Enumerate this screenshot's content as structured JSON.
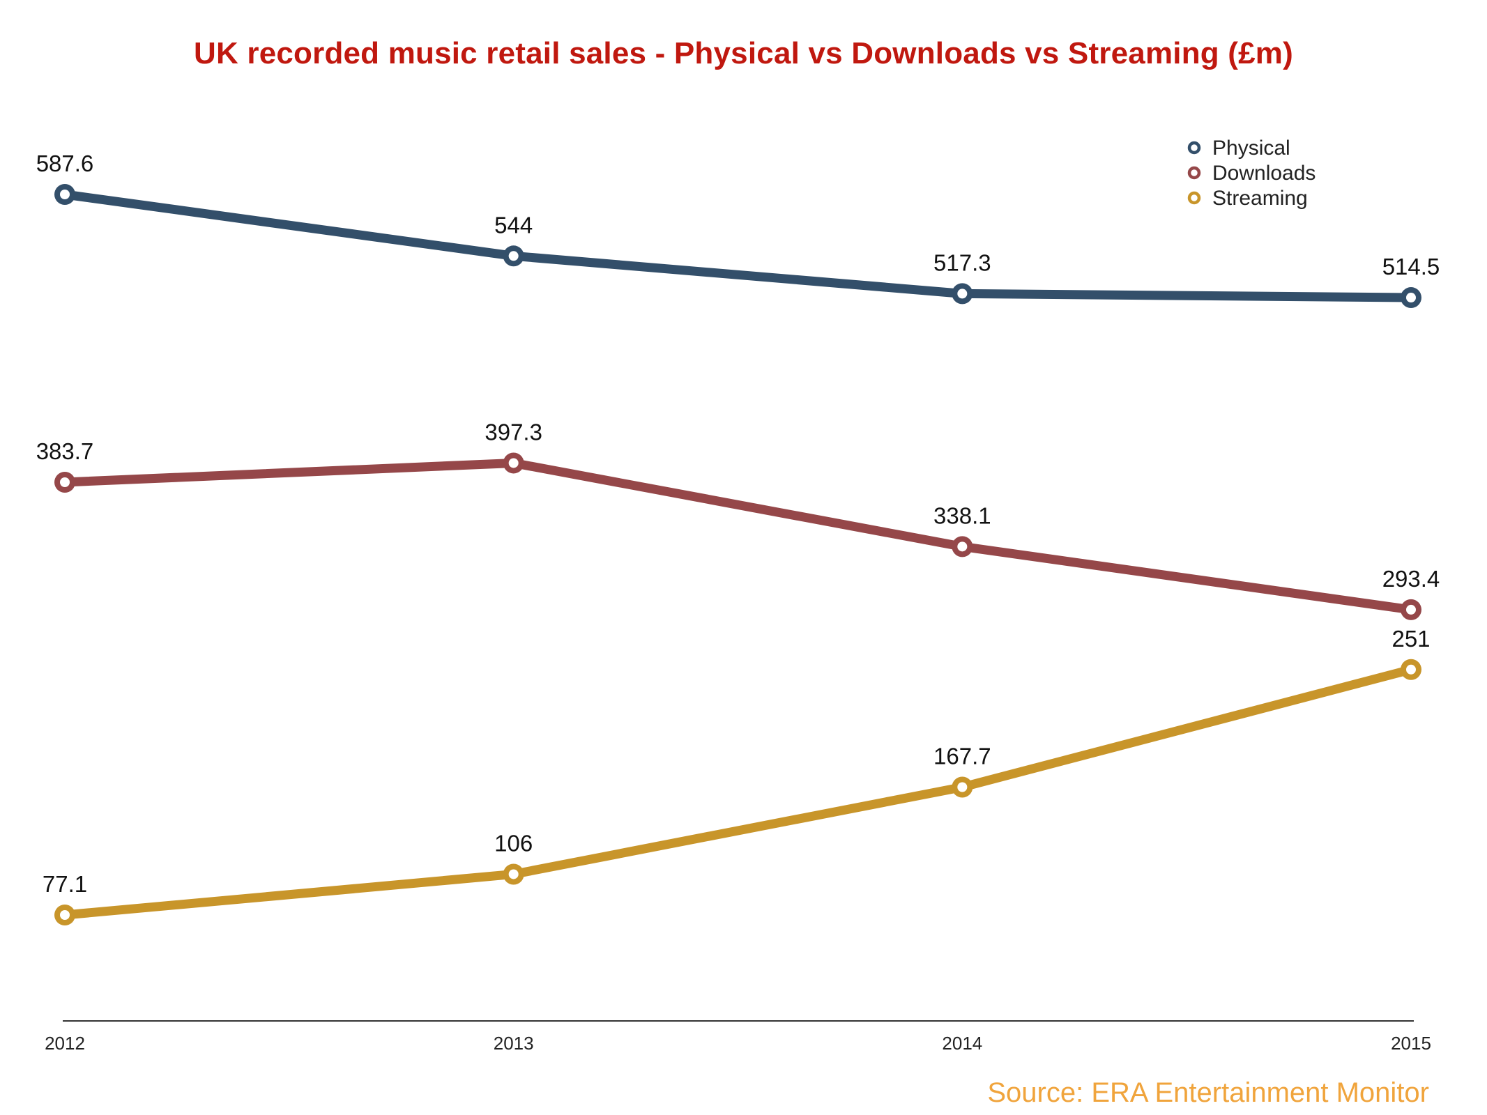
{
  "chart_data": {
    "type": "line",
    "title": "UK recorded music retail sales - Physical vs Downloads vs Streaming (£m)",
    "xlabel": "",
    "ylabel": "",
    "categories": [
      "2012",
      "2013",
      "2014",
      "2015"
    ],
    "ylim": [
      0,
      650
    ],
    "grid": false,
    "legend_position": "top-right",
    "series": [
      {
        "name": "Physical",
        "color": "#334f6a",
        "values": [
          587.6,
          544,
          517.3,
          514.5
        ],
        "labels": [
          "587.6",
          "544",
          "517.3",
          "514.5"
        ]
      },
      {
        "name": "Downloads",
        "color": "#954749",
        "values": [
          383.7,
          397.3,
          338.1,
          293.4
        ],
        "labels": [
          "383.7",
          "397.3",
          "338.1",
          "293.4"
        ]
      },
      {
        "name": "Streaming",
        "color": "#c8952a",
        "values": [
          77.1,
          106,
          167.7,
          251
        ],
        "labels": [
          "77.1",
          "106",
          "167.7",
          "251"
        ]
      }
    ]
  },
  "source": "Source: ERA Entertainment Monitor"
}
